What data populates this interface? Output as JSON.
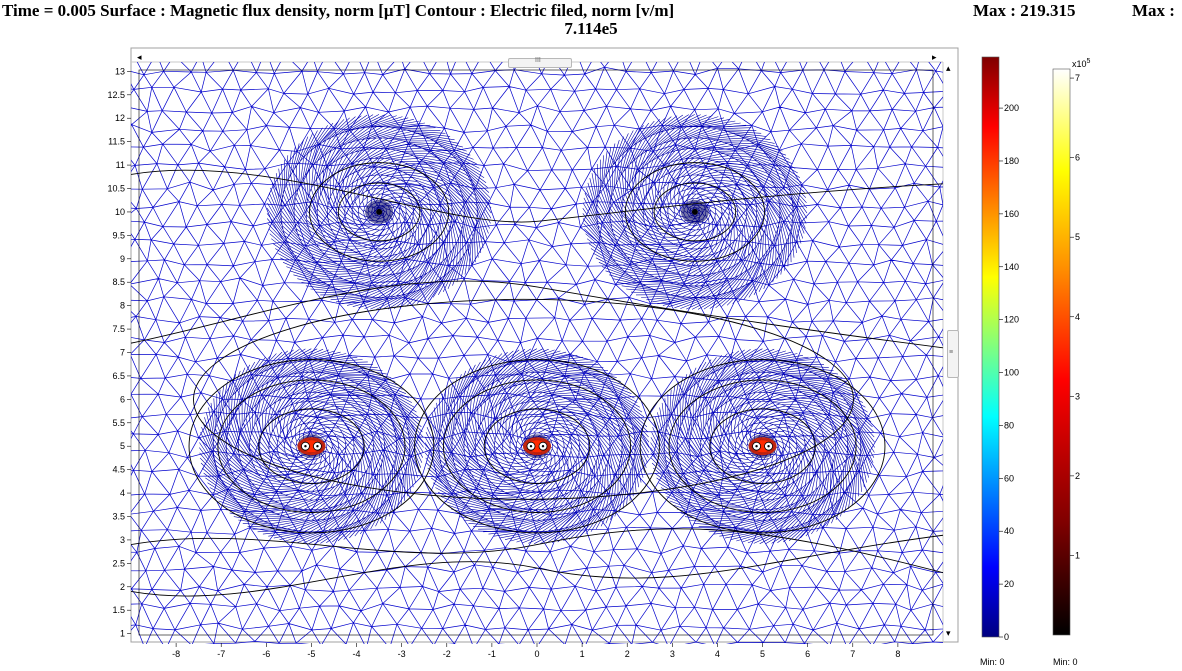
{
  "header": {
    "left": "Time = 0.005 Surface : Magnetic flux density, norm [μT]   Contour : Electric filed, norm [v/m]",
    "max1": "Max : 219.315",
    "max2_label": "Max :",
    "max2_value": "7.114e5"
  },
  "axes": {
    "x_ticks": [
      "-8",
      "-7",
      "-6",
      "-5",
      "-4",
      "-3",
      "-2",
      "-1",
      "0",
      "1",
      "2",
      "3",
      "4",
      "5",
      "6",
      "7",
      "8"
    ],
    "y_ticks": [
      "13",
      "12.5",
      "12",
      "11.5",
      "11",
      "10.5",
      "10",
      "9.5",
      "9",
      "8.5",
      "8",
      "7.5",
      "7",
      "6.5",
      "6",
      "5.5",
      "5",
      "4.5",
      "4",
      "3.5",
      "3",
      "2.5",
      "2",
      "1.5",
      "1"
    ],
    "xlim": [
      -9,
      9
    ],
    "ylim": [
      0.8,
      13.2
    ]
  },
  "colorbar_surface": {
    "ticks": [
      "200",
      "180",
      "160",
      "140",
      "120",
      "100",
      "80",
      "60",
      "40",
      "20",
      "0"
    ],
    "min_label": "Min: 0",
    "colors": [
      "#000080",
      "#0000ff",
      "#00ffff",
      "#ffff00",
      "#ff0000",
      "#800000"
    ]
  },
  "colorbar_contour": {
    "exponent_label": "x10",
    "exponent_sup": "5",
    "ticks": [
      "7",
      "6",
      "5",
      "4",
      "3",
      "2",
      "1"
    ],
    "min_label": "Min: 0",
    "colors": [
      "#000000",
      "#800000",
      "#ff0000",
      "#ff8000",
      "#ffff00",
      "#ffffff"
    ]
  },
  "mesh_color": "#0000cc",
  "contour_color": "#000000",
  "sources": [
    {
      "name": "conductor-upper-left",
      "x": -3.5,
      "y": 10.0
    },
    {
      "name": "conductor-upper-right",
      "x": 3.5,
      "y": 10.0
    },
    {
      "name": "conductor-lower-left",
      "x": -5.0,
      "y": 5.0
    },
    {
      "name": "conductor-lower-center",
      "x": 0.0,
      "y": 5.0
    },
    {
      "name": "conductor-lower-right",
      "x": 5.0,
      "y": 5.0
    }
  ]
}
